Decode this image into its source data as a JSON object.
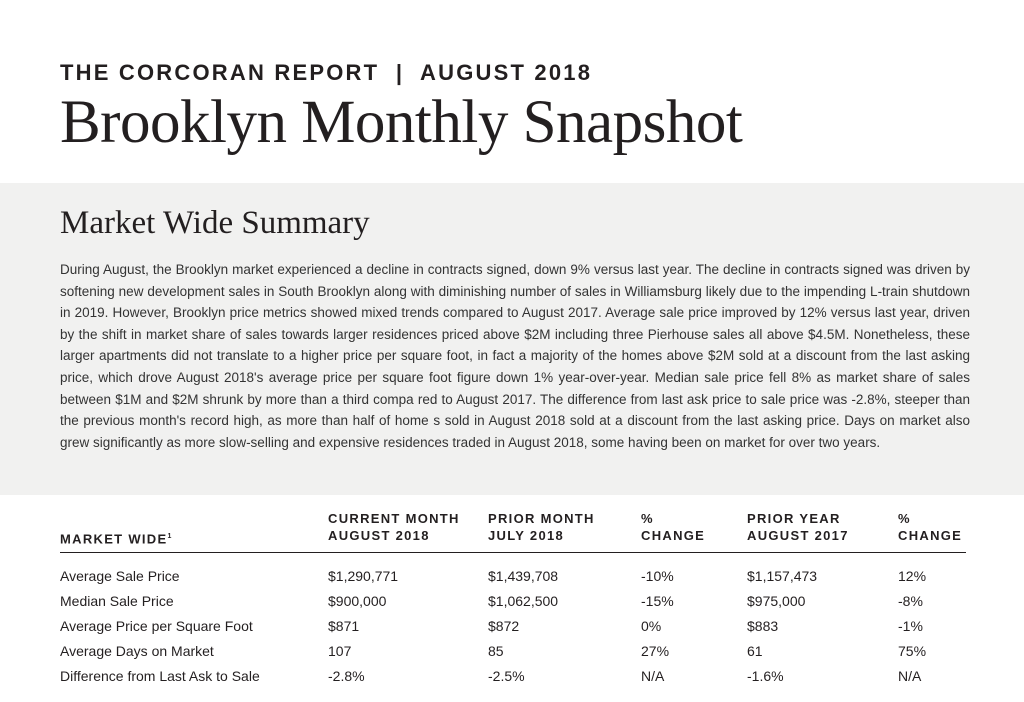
{
  "header": {
    "eyebrow": "THE CORCORAN REPORT  |  AUGUST 2018",
    "title": "Brooklyn Monthly Snapshot"
  },
  "summary": {
    "heading": "Market Wide Summary",
    "body": "During August, the Brooklyn market experienced a decline in contracts signed, down 9% versus last year. The decline in contracts signed was driven by softening new development sales in South Brooklyn along with diminishing number of sales in Williamsburg likely due to the impending L-train shutdown in 2019. However, Brooklyn price metrics showed mixed trends compared to August 2017. Average sale price improved by 12% versus last year, driven by the shift in market share of sales towards larger residences priced above $2M including three Pierhouse sales all above $4.5M. Nonetheless, these larger apartments did not translate to a higher price per square foot, in fact a majority of the homes above $2M sold at a discount from the last asking price, which drove August 2018's average price per square foot figure down 1% year-over-year. Median sale price fell 8% as market share of sales between $1M and $2M shrunk by more than a third compa red to August 2017. The difference from last ask price to sale price was -2.8%, steeper than the previous month's record high, as more than half of home s sold in August 2018 sold at a discount from the last asking price. Days on market also grew significantly as more slow-selling and expensive residences traded in August 2018, some having been on market for over two years."
  },
  "table": {
    "headers": {
      "metric": "MARKET WIDE",
      "metric_sup": "1",
      "current_1": "CURRENT MONTH",
      "current_2": "AUGUST 2018",
      "prior_month_1": "PRIOR MONTH",
      "prior_month_2": "JULY 2018",
      "change_1a": "%",
      "change_1b": "CHANGE",
      "prior_year_1": "PRIOR YEAR",
      "prior_year_2": "AUGUST 2017",
      "change_2a": "%",
      "change_2b": "CHANGE"
    },
    "rows": [
      {
        "metric": "Average Sale Price",
        "current": "$1,290,771",
        "prior_month": "$1,439,708",
        "change_month": "-10%",
        "prior_year": "$1,157,473",
        "change_year": "12%"
      },
      {
        "metric": "Median Sale Price",
        "current": "$900,000",
        "prior_month": "$1,062,500",
        "change_month": "-15%",
        "prior_year": "$975,000",
        "change_year": "-8%"
      },
      {
        "metric": "Average Price per Square Foot",
        "current": "$871",
        "prior_month": "$872",
        "change_month": "0%",
        "prior_year": "$883",
        "change_year": "-1%"
      },
      {
        "metric": "Average Days on Market",
        "current": "107",
        "prior_month": "85",
        "change_month": "27%",
        "prior_year": "61",
        "change_year": "75%"
      },
      {
        "metric": "Difference from Last Ask to Sale",
        "current": "-2.8%",
        "prior_month": "-2.5%",
        "change_month": "N/A",
        "prior_year": "-1.6%",
        "change_year": "N/A"
      }
    ]
  }
}
